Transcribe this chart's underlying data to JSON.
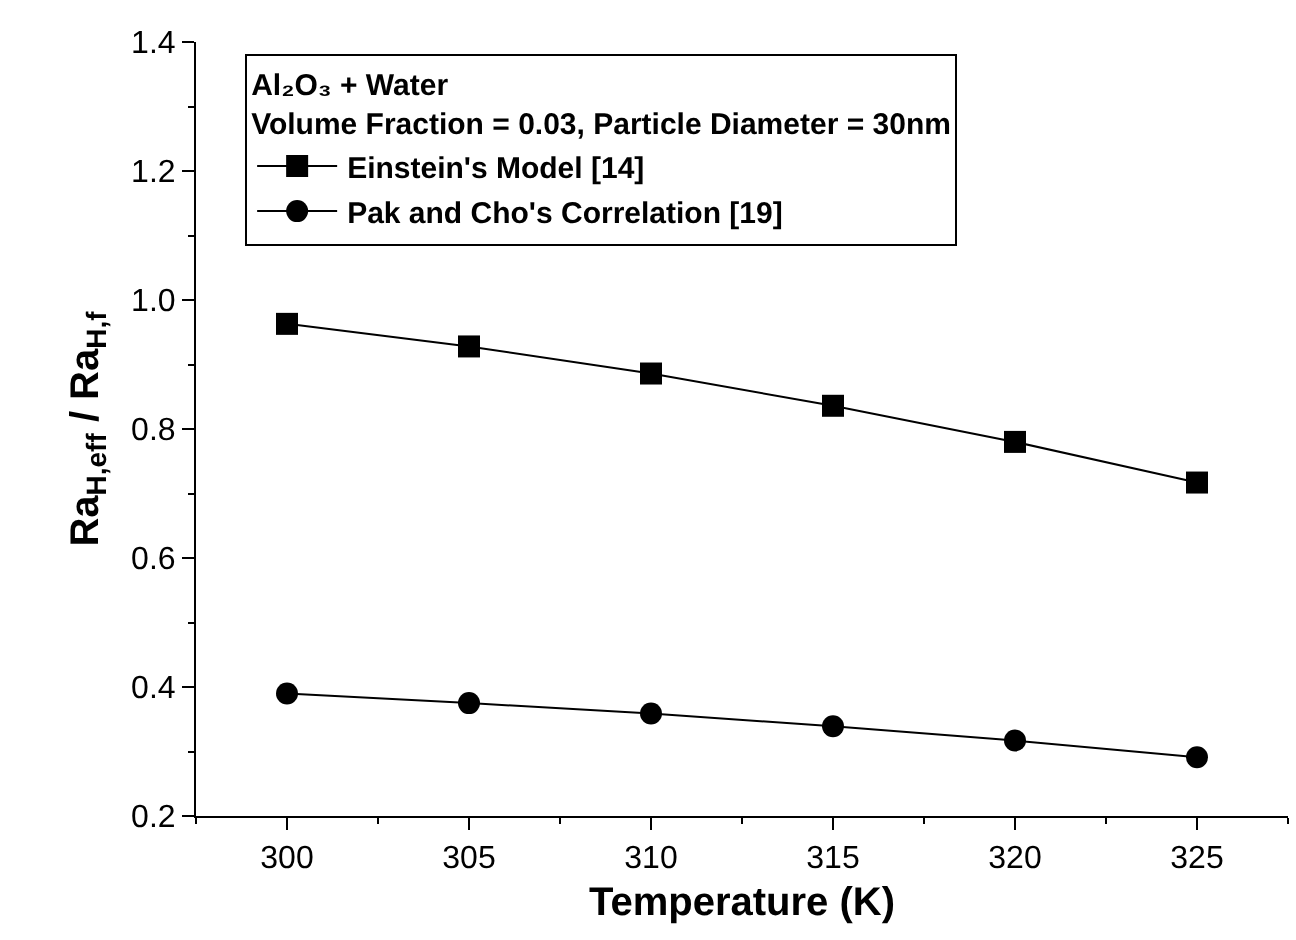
{
  "chart_data": {
    "type": "line",
    "xlabel": "Temperature (K)",
    "ylabel": "Ra$_{H,eff}$ / Ra$_{H,f}$",
    "legend_title": "Al₂O₃ + Water\nVolume Fraction = 0.03, Particle Diameter = 30nm",
    "x": [
      300,
      305,
      310,
      315,
      320,
      325
    ],
    "series": [
      {
        "name": "Einstein's Model [14]",
        "color": "#000000",
        "marker": "square",
        "values": [
          0.963,
          0.928,
          0.886,
          0.836,
          0.78,
          0.717
        ]
      },
      {
        "name": "Pak and Cho's Correlation [19]",
        "color": "#000000",
        "marker": "circle",
        "values": [
          0.39,
          0.375,
          0.359,
          0.339,
          0.317,
          0.291
        ]
      }
    ],
    "xlim": [
      297.5,
      327.5
    ],
    "xticks": [
      300,
      305,
      310,
      315,
      320,
      325
    ],
    "ylim": [
      0.2,
      1.4
    ],
    "yticks": [
      0.2,
      0.4,
      0.6,
      0.8,
      {
        "value": 1.0,
        "label": "1.0"
      },
      1.2,
      1.4
    ],
    "grid": false,
    "legend": "top",
    "line_style": "solid"
  }
}
